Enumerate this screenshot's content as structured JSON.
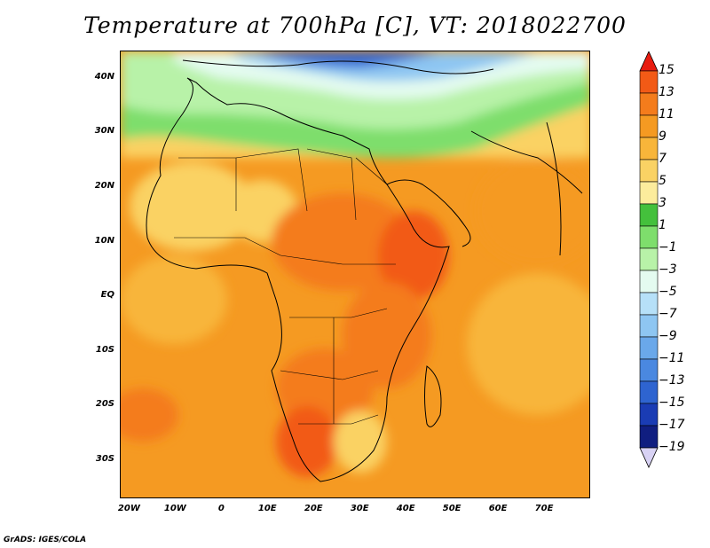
{
  "title": "Temperature at 700hPa [C], VT: 2018022700",
  "footer": "GrADS: IGES/COLA",
  "axes": {
    "lat_labels": [
      "40N",
      "30N",
      "20N",
      "10N",
      "EQ",
      "10S",
      "20S",
      "30S"
    ],
    "lat_values": [
      40,
      30,
      20,
      10,
      0,
      -10,
      -20,
      -30
    ],
    "lon_labels": [
      "20W",
      "10W",
      "0",
      "10E",
      "20E",
      "30E",
      "40E",
      "50E",
      "60E",
      "70E"
    ],
    "lon_values": [
      -20,
      -10,
      0,
      10,
      20,
      30,
      40,
      50,
      60,
      70
    ],
    "lon_range": [
      -22,
      80
    ],
    "lat_range": [
      -37,
      45
    ]
  },
  "colorbar": {
    "labels": [
      "15",
      "13",
      "11",
      "9",
      "7",
      "5",
      "3",
      "1",
      "−1",
      "−3",
      "−5",
      "−7",
      "−9",
      "−11",
      "−13",
      "−15",
      "−17",
      "−19"
    ],
    "colors": [
      "#f03010",
      "#f25a16",
      "#f47c1c",
      "#f59a22",
      "#f8b53a",
      "#fad264",
      "#fcec9c",
      "#44c03c",
      "#7ede6c",
      "#b8f2a8",
      "#e4fbf0",
      "#b6e0f8",
      "#8ec6f2",
      "#6aa8ea",
      "#4a88e0",
      "#2e64d0",
      "#1a3cb4",
      "#101e80",
      "#d8d2f4"
    ],
    "top_arrow_color": "#e81c10",
    "bottom_arrow_color": "#d8d2f4"
  }
}
